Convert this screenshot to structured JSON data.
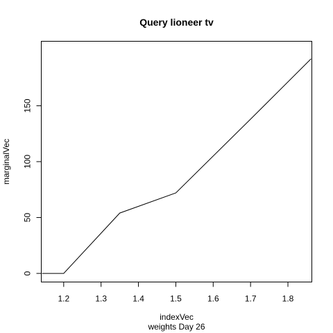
{
  "chart_data": {
    "type": "line",
    "title": "Query lioneer tv",
    "xlabel": "indexVec",
    "subtitle": "weights Day 26",
    "ylabel": "marginalVec",
    "xlim": [
      1.14,
      1.864
    ],
    "ylim": [
      -7.7,
      207.7
    ],
    "xticks": [
      1.2,
      1.3,
      1.4,
      1.5,
      1.6,
      1.7,
      1.8
    ],
    "xtick_labels": [
      "1.2",
      "1.3",
      "1.4",
      "1.5",
      "1.6",
      "1.7",
      "1.8"
    ],
    "yticks": [
      0,
      50,
      100,
      150
    ],
    "ytick_labels": [
      "0",
      "50",
      "100",
      "150"
    ],
    "grid": false,
    "series": [
      {
        "x": [
          1.142,
          1.2,
          1.35,
          1.5,
          1.7,
          1.862
        ],
        "y": [
          0,
          0,
          54,
          72,
          138,
          192
        ],
        "color": "#000000"
      }
    ]
  }
}
